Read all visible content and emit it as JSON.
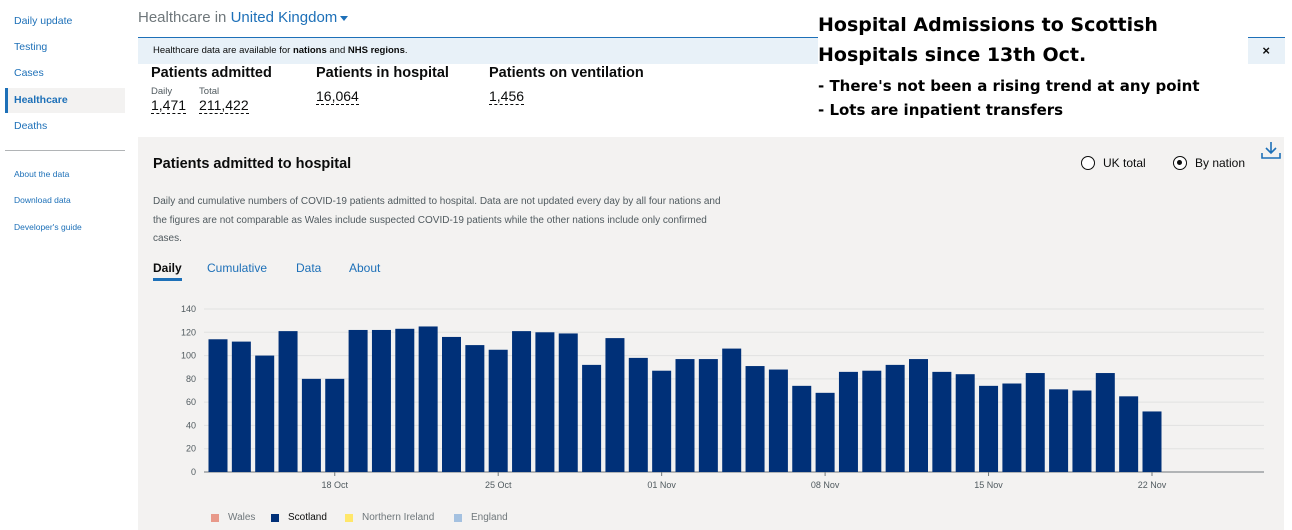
{
  "sidebar": {
    "items": [
      "Daily update",
      "Testing",
      "Cases",
      "Healthcare",
      "Deaths"
    ],
    "active": "Healthcare",
    "secondary": [
      "About the data",
      "Download data",
      "Developer's guide"
    ]
  },
  "header": {
    "prefix": "Healthcare in",
    "area": "United Kingdom"
  },
  "banner": {
    "text_pre": "Healthcare data are available for ",
    "bold1": "nations",
    "and": " and ",
    "bold2": "NHS regions",
    "end": ".",
    "close": "×"
  },
  "annotation": {
    "title_line1": "Hospital Admissions to Scottish",
    "title_line2": "Hospitals since 13th Oct.",
    "bullets": [
      "-  There's not been a rising trend at any point",
      "-  Lots are inpatient transfers"
    ]
  },
  "headlines": {
    "admitted": {
      "label": "Patients admitted",
      "daily_label": "Daily",
      "daily": "1,471",
      "total_label": "Total",
      "total": "211,422"
    },
    "in_hospital": {
      "label": "Patients in hospital",
      "value": "16,064"
    },
    "ventilation": {
      "label": "Patients on ventilation",
      "value": "1,456"
    }
  },
  "card": {
    "title": "Patients admitted to hospital",
    "description": "Daily and cumulative numbers of COVID-19 patients admitted to hospital. Data are not updated every day by all four nations and the figures are not comparable as Wales include suspected COVID-19 patients while the other nations include only confirmed cases.",
    "radios": [
      {
        "label": "UK total",
        "checked": false
      },
      {
        "label": "By nation",
        "checked": true
      }
    ],
    "tabs": [
      "Daily",
      "Cumulative",
      "Data",
      "About"
    ],
    "active_tab": "Daily",
    "download_icon": "download-icon"
  },
  "colors": {
    "scotland": "#003078",
    "wales": "#e8998a",
    "northern_ireland": "#ffe76a",
    "england": "#a4c1e0",
    "link": "#1d70b8"
  },
  "chart_data": {
    "type": "bar",
    "x": [
      "13 Oct",
      "14 Oct",
      "15 Oct",
      "16 Oct",
      "17 Oct",
      "18 Oct",
      "19 Oct",
      "20 Oct",
      "21 Oct",
      "22 Oct",
      "23 Oct",
      "24 Oct",
      "25 Oct",
      "26 Oct",
      "27 Oct",
      "28 Oct",
      "29 Oct",
      "30 Oct",
      "31 Oct",
      "01 Nov",
      "02 Nov",
      "03 Nov",
      "04 Nov",
      "05 Nov",
      "06 Nov",
      "07 Nov",
      "08 Nov",
      "09 Nov",
      "10 Nov",
      "11 Nov",
      "12 Nov",
      "13 Nov",
      "14 Nov",
      "15 Nov",
      "16 Nov",
      "17 Nov",
      "18 Nov",
      "19 Nov",
      "20 Nov",
      "21 Nov",
      "22 Nov"
    ],
    "x_ticks": [
      "18 Oct",
      "25 Oct",
      "01 Nov",
      "08 Nov",
      "15 Nov",
      "22 Nov"
    ],
    "series": [
      {
        "name": "Scotland",
        "values": [
          114,
          112,
          100,
          121,
          80,
          80,
          122,
          122,
          123,
          125,
          116,
          109,
          105,
          121,
          120,
          119,
          92,
          115,
          98,
          87,
          97,
          97,
          106,
          91,
          88,
          74,
          68,
          86,
          87,
          92,
          97,
          86,
          84,
          74,
          76,
          85,
          71,
          70,
          85,
          65,
          52
        ]
      }
    ],
    "y_ticks": [
      0,
      20,
      40,
      60,
      80,
      100,
      120,
      140
    ],
    "ylim": [
      0,
      140
    ],
    "legend": [
      "Wales",
      "Scotland",
      "Northern Ireland",
      "England"
    ],
    "legend_active": "Scotland",
    "legend_position": "bottom-left",
    "grid": true
  }
}
